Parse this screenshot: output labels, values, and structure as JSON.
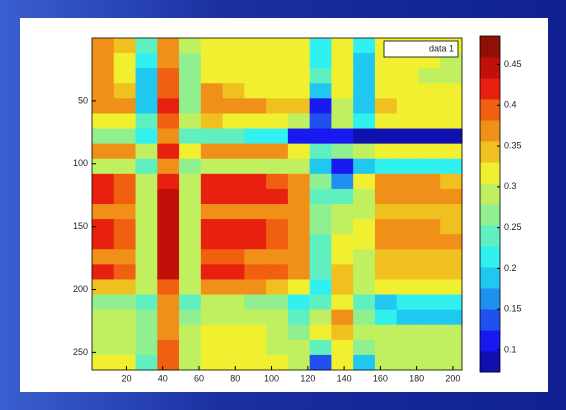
{
  "chart_data": {
    "type": "heatmap",
    "x": [
      7,
      19,
      31,
      43,
      55,
      67,
      79,
      91,
      103,
      115,
      127,
      139,
      151,
      163,
      175,
      187,
      199
    ],
    "y": [
      6,
      18,
      30,
      42,
      54,
      66,
      78,
      90,
      102,
      114,
      126,
      138,
      150,
      162,
      174,
      186,
      198,
      210,
      222,
      234,
      246,
      258
    ],
    "z": [
      [
        0.36,
        0.34,
        0.25,
        0.36,
        0.28,
        0.33,
        0.33,
        0.32,
        0.32,
        0.33,
        0.22,
        0.33,
        0.22,
        0.31,
        0.31,
        0.31,
        0.31
      ],
      [
        0.38,
        0.33,
        0.22,
        0.38,
        0.27,
        0.32,
        0.31,
        0.31,
        0.31,
        0.32,
        0.22,
        0.31,
        0.2,
        0.31,
        0.31,
        0.31,
        0.3
      ],
      [
        0.37,
        0.33,
        0.18,
        0.4,
        0.26,
        0.33,
        0.32,
        0.31,
        0.31,
        0.31,
        0.23,
        0.32,
        0.2,
        0.32,
        0.31,
        0.3,
        0.3
      ],
      [
        0.36,
        0.35,
        0.18,
        0.4,
        0.26,
        0.36,
        0.34,
        0.33,
        0.32,
        0.31,
        0.2,
        0.32,
        0.2,
        0.33,
        0.31,
        0.31,
        0.31
      ],
      [
        0.37,
        0.36,
        0.2,
        0.41,
        0.26,
        0.38,
        0.37,
        0.36,
        0.35,
        0.34,
        0.12,
        0.3,
        0.2,
        0.34,
        0.33,
        0.33,
        0.32
      ],
      [
        0.33,
        0.33,
        0.24,
        0.39,
        0.28,
        0.34,
        0.33,
        0.32,
        0.31,
        0.3,
        0.14,
        0.3,
        0.22,
        0.32,
        0.32,
        0.32,
        0.32
      ],
      [
        0.27,
        0.26,
        0.22,
        0.38,
        0.24,
        0.24,
        0.23,
        0.22,
        0.21,
        0.12,
        0.1,
        0.1,
        0.09,
        0.09,
        0.09,
        0.09,
        0.09
      ],
      [
        0.38,
        0.38,
        0.3,
        0.42,
        0.32,
        0.38,
        0.38,
        0.37,
        0.37,
        0.33,
        0.24,
        0.26,
        0.3,
        0.32,
        0.33,
        0.33,
        0.32
      ],
      [
        0.3,
        0.3,
        0.24,
        0.38,
        0.26,
        0.3,
        0.3,
        0.3,
        0.3,
        0.29,
        0.2,
        0.12,
        0.2,
        0.22,
        0.22,
        0.22,
        0.22
      ],
      [
        0.41,
        0.4,
        0.3,
        0.43,
        0.3,
        0.41,
        0.42,
        0.41,
        0.4,
        0.38,
        0.26,
        0.16,
        0.31,
        0.37,
        0.37,
        0.36,
        0.35
      ],
      [
        0.42,
        0.4,
        0.3,
        0.44,
        0.3,
        0.42,
        0.42,
        0.42,
        0.41,
        0.38,
        0.25,
        0.24,
        0.3,
        0.37,
        0.37,
        0.36,
        0.36
      ],
      [
        0.37,
        0.36,
        0.28,
        0.44,
        0.29,
        0.38,
        0.38,
        0.38,
        0.37,
        0.36,
        0.26,
        0.28,
        0.3,
        0.34,
        0.34,
        0.34,
        0.34
      ],
      [
        0.41,
        0.4,
        0.29,
        0.45,
        0.3,
        0.42,
        0.42,
        0.41,
        0.4,
        0.37,
        0.27,
        0.3,
        0.32,
        0.36,
        0.36,
        0.36,
        0.35
      ],
      [
        0.42,
        0.4,
        0.3,
        0.45,
        0.3,
        0.42,
        0.42,
        0.41,
        0.4,
        0.37,
        0.24,
        0.31,
        0.31,
        0.37,
        0.37,
        0.36,
        0.36
      ],
      [
        0.38,
        0.37,
        0.28,
        0.44,
        0.29,
        0.39,
        0.39,
        0.38,
        0.38,
        0.36,
        0.23,
        0.32,
        0.3,
        0.34,
        0.34,
        0.34,
        0.34
      ],
      [
        0.41,
        0.4,
        0.3,
        0.44,
        0.3,
        0.41,
        0.41,
        0.4,
        0.4,
        0.36,
        0.24,
        0.34,
        0.3,
        0.35,
        0.35,
        0.35,
        0.35
      ],
      [
        0.34,
        0.34,
        0.28,
        0.4,
        0.28,
        0.36,
        0.36,
        0.36,
        0.35,
        0.33,
        0.22,
        0.35,
        0.28,
        0.32,
        0.32,
        0.32,
        0.32
      ],
      [
        0.26,
        0.26,
        0.24,
        0.36,
        0.24,
        0.28,
        0.28,
        0.27,
        0.26,
        0.22,
        0.25,
        0.33,
        0.24,
        0.2,
        0.22,
        0.22,
        0.22
      ],
      [
        0.28,
        0.28,
        0.26,
        0.38,
        0.27,
        0.3,
        0.3,
        0.3,
        0.29,
        0.24,
        0.3,
        0.36,
        0.26,
        0.22,
        0.2,
        0.18,
        0.2
      ],
      [
        0.3,
        0.3,
        0.27,
        0.38,
        0.28,
        0.31,
        0.31,
        0.31,
        0.3,
        0.27,
        0.32,
        0.35,
        0.28,
        0.28,
        0.28,
        0.28,
        0.28
      ],
      [
        0.3,
        0.3,
        0.26,
        0.4,
        0.28,
        0.31,
        0.31,
        0.31,
        0.3,
        0.28,
        0.24,
        0.32,
        0.27,
        0.28,
        0.28,
        0.28,
        0.28
      ],
      [
        0.31,
        0.31,
        0.25,
        0.4,
        0.28,
        0.32,
        0.32,
        0.32,
        0.31,
        0.28,
        0.14,
        0.31,
        0.18,
        0.3,
        0.3,
        0.3,
        0.3
      ]
    ],
    "xlim": [
      1,
      205
    ],
    "xticks": [
      20,
      40,
      60,
      80,
      100,
      120,
      140,
      160,
      180,
      200
    ],
    "ylim": [
      0,
      264
    ],
    "yticks": [
      50,
      100,
      150,
      200,
      250
    ],
    "y_reversed": true,
    "clim": [
      0.073,
      0.485
    ],
    "cticks": [
      0.1,
      0.15,
      0.2,
      0.25,
      0.3,
      0.35,
      0.4,
      0.45
    ],
    "colormap": [
      "#1010b0",
      "#1818f0",
      "#2050f0",
      "#2090f0",
      "#20c8f0",
      "#30f0f0",
      "#60f0c0",
      "#90f090",
      "#c0f060",
      "#f0f030",
      "#f0c020",
      "#f09018",
      "#f06010",
      "#e82010",
      "#c01008",
      "#901008"
    ],
    "legend_entries": [
      "data 1"
    ],
    "legend_position": "northeast"
  }
}
